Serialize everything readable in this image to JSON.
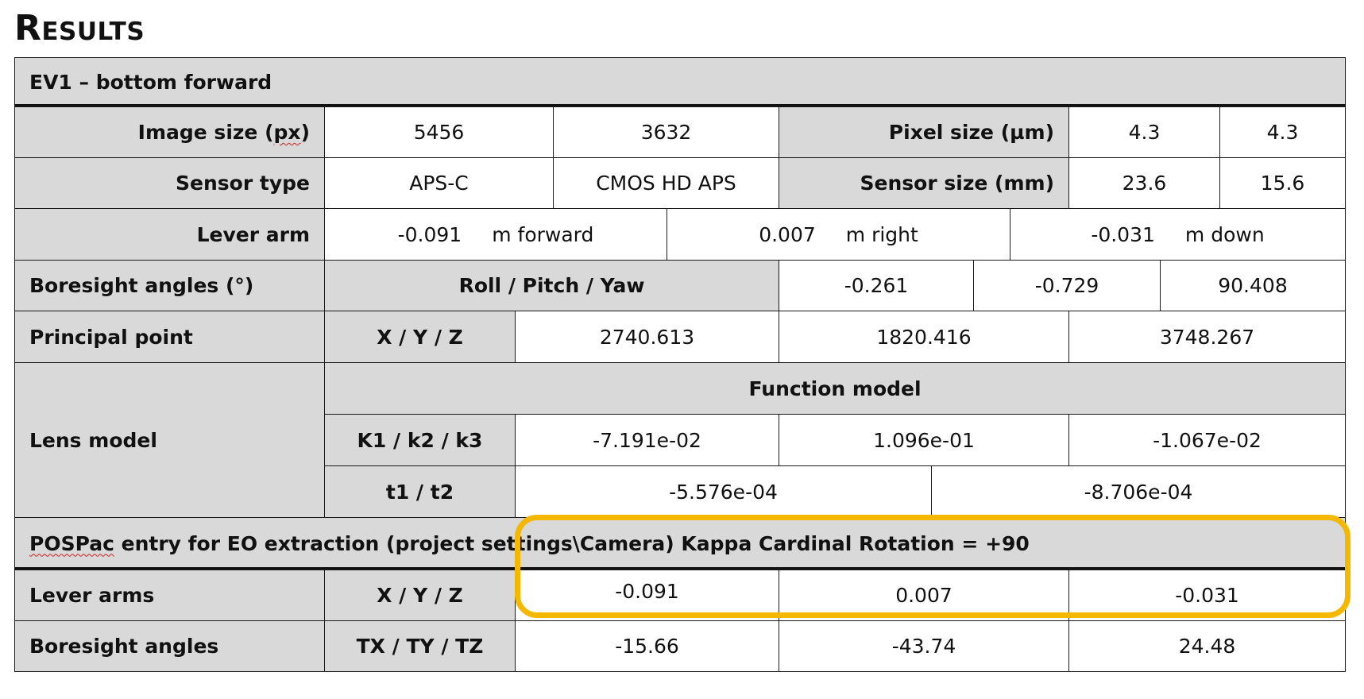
{
  "title": "Results",
  "table": {
    "header": "EV1 – bottom forward",
    "image_size": {
      "label_pre": "Image size (",
      "label_unit": "px",
      "label_post": ")",
      "w": "5456",
      "h": "3632",
      "pixel_label": "Pixel size (µm)",
      "pw": "4.3",
      "ph": "4.3"
    },
    "sensor": {
      "label": "Sensor type",
      "type1": "APS-C",
      "type2": "CMOS HD APS",
      "size_label": "Sensor size (mm)",
      "sw": "23.6",
      "sh": "15.6"
    },
    "lever_arm": {
      "label": "Lever arm",
      "v1": "-0.091",
      "u1": "m forward",
      "v2": "0.007",
      "u2": "m right",
      "v3": "-0.031",
      "u3": "m down"
    },
    "boresight": {
      "label": "Boresight angles (°)",
      "sub": "Roll / Pitch / Yaw",
      "v1": "-0.261",
      "v2": "-0.729",
      "v3": "90.408"
    },
    "principal": {
      "label": "Principal point",
      "sub": "X / Y / Z",
      "v1": "2740.613",
      "v2": "1820.416",
      "v3": "3748.267"
    },
    "lens": {
      "label": "Lens model",
      "function_label": "Function model",
      "k_label": "K1 / k2 / k3",
      "k1": "-7.191e-02",
      "k2": "1.096e-01",
      "k3": "-1.067e-02",
      "t_label": "t1 / t2",
      "t1": "-5.576e-04",
      "t2": "-8.706e-04"
    },
    "pospac": {
      "prefix": "POSPac",
      "rest": " entry for EO extraction (project settings\\Camera) Kappa Cardinal Rotation = +90"
    },
    "lever_arms": {
      "label": "Lever arms",
      "sub": "X / Y / Z",
      "v1": "-0.091",
      "v2": "0.007",
      "v3": "-0.031"
    },
    "boresight2": {
      "label": "Boresight angles",
      "sub": "TX / TY / TZ",
      "v1": "-15.66",
      "v2": "-43.74",
      "v3": "24.48"
    }
  },
  "colors": {
    "header_gray": "#d9d9d9",
    "highlight": "#f5b800"
  }
}
